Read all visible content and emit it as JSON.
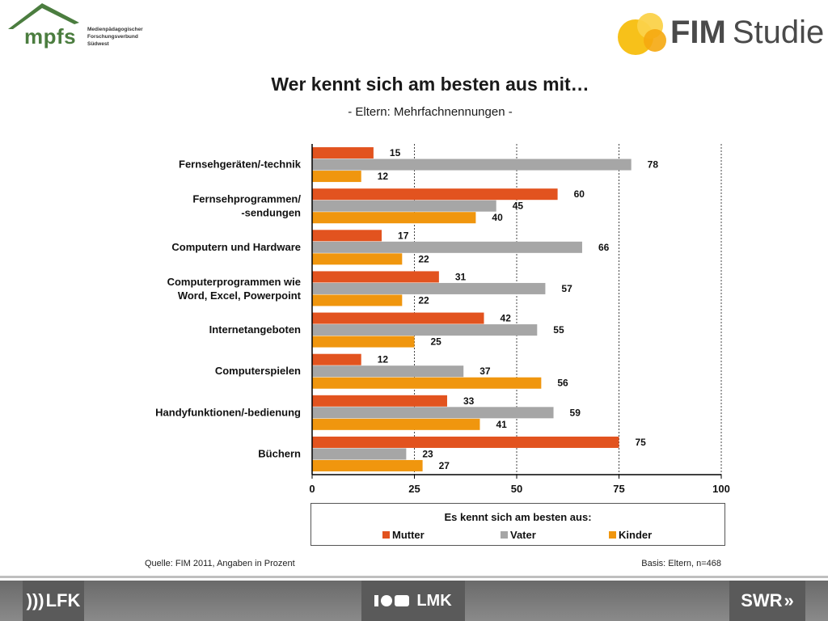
{
  "header": {
    "left_logo": {
      "name": "mpfs",
      "lines": [
        "Medienpädagogischer",
        "Forschungsverbund",
        "Südwest"
      ]
    },
    "right_logo": {
      "name": "FIM",
      "suffix": "Studie"
    }
  },
  "colors": {
    "mutter": "#e2531f",
    "vater": "#a6a6a6",
    "kinder": "#f0960e",
    "logo_green": "#4b7d3f",
    "logo_yellow": "#f7c11a"
  },
  "chart_data": {
    "type": "bar",
    "orientation": "horizontal",
    "title": "Wer kennt sich am besten aus mit…",
    "subtitle": "- Eltern: Mehrfachnennungen -",
    "categories": [
      [
        "Fernsehgeräten/-technik"
      ],
      [
        "Fernsehprogrammen/",
        "-sendungen"
      ],
      [
        "Computern und Hardware"
      ],
      [
        "Computerprogrammen wie",
        "Word, Excel, Powerpoint"
      ],
      [
        "Internetangeboten"
      ],
      [
        "Computerspielen"
      ],
      [
        "Handyfunktionen/-bedienung"
      ],
      [
        "Büchern"
      ]
    ],
    "series": [
      {
        "name": "Mutter",
        "color": "#e2531f",
        "values": [
          15,
          60,
          17,
          31,
          42,
          12,
          33,
          75
        ]
      },
      {
        "name": "Vater",
        "color": "#a6a6a6",
        "values": [
          78,
          45,
          66,
          57,
          55,
          37,
          59,
          23
        ]
      },
      {
        "name": "Kinder",
        "color": "#f0960e",
        "values": [
          12,
          40,
          22,
          22,
          25,
          56,
          41,
          27
        ]
      }
    ],
    "xlim": [
      0,
      100
    ],
    "xticks": [
      0,
      25,
      50,
      75,
      100
    ],
    "grid": "dashed vertical at 25, 50, 75, 100",
    "legend_title": "Es kennt sich am besten aus:",
    "legend_position": "bottom"
  },
  "footer": {
    "source": "Quelle: FIM 2011, Angaben in Prozent",
    "basis": "Basis: Eltern, n=468",
    "logos": {
      "lfk": "LFK",
      "lmk": "LMK",
      "swr": "SWR"
    }
  }
}
